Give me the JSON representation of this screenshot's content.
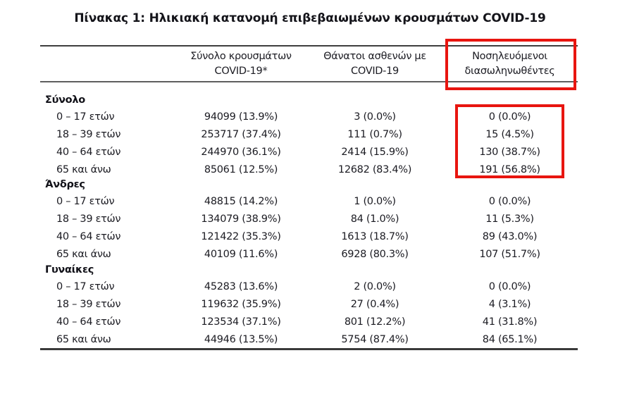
{
  "title": "Πίνακας 1: Ηλικιακή κατανομή επιβεβαιωμένων κρουσμάτων COVID-19",
  "highlight_color": "#e8150f",
  "text_color": "#1b1b22",
  "table": {
    "columns": [
      {
        "line1": "Σύνολο κρουσμάτων",
        "line2": "COVID-19*"
      },
      {
        "line1": "Θάνατοι ασθενών με",
        "line2": "COVID-19"
      },
      {
        "line1": "Νοσηλευόμενοι",
        "line2": "διασωληνωθέντες"
      }
    ],
    "sections": [
      {
        "label": "Σύνολο",
        "rows": [
          {
            "age": "0 – 17 ετών",
            "cases": "94099 (13.9%)",
            "deaths": "3 (0.0%)",
            "intubated": "0 (0.0%)"
          },
          {
            "age": "18 – 39 ετών",
            "cases": "253717 (37.4%)",
            "deaths": "111 (0.7%)",
            "intubated": "15 (4.5%)"
          },
          {
            "age": "40 – 64 ετών",
            "cases": "244970 (36.1%)",
            "deaths": "2414 (15.9%)",
            "intubated": "130 (38.7%)"
          },
          {
            "age": "65 και άνω",
            "cases": "85061 (12.5%)",
            "deaths": "12682 (83.4%)",
            "intubated": "191 (56.8%)"
          }
        ]
      },
      {
        "label": "Άνδρες",
        "rows": [
          {
            "age": "0 – 17 ετών",
            "cases": "48815 (14.2%)",
            "deaths": "1 (0.0%)",
            "intubated": "0 (0.0%)"
          },
          {
            "age": "18 – 39 ετών",
            "cases": "134079 (38.9%)",
            "deaths": "84 (1.0%)",
            "intubated": "11 (5.3%)"
          },
          {
            "age": "40 – 64 ετών",
            "cases": "121422 (35.3%)",
            "deaths": "1613 (18.7%)",
            "intubated": "89 (43.0%)"
          },
          {
            "age": "65 και άνω",
            "cases": "40109 (11.6%)",
            "deaths": "6928 (80.3%)",
            "intubated": "107 (51.7%)"
          }
        ]
      },
      {
        "label": "Γυναίκες",
        "rows": [
          {
            "age": "0 – 17 ετών",
            "cases": "45283 (13.6%)",
            "deaths": "2 (0.0%)",
            "intubated": "0 (0.0%)"
          },
          {
            "age": "18 – 39 ετών",
            "cases": "119632 (35.9%)",
            "deaths": "27 (0.4%)",
            "intubated": "4 (3.1%)"
          },
          {
            "age": "40 – 64 ετών",
            "cases": "123534 (37.1%)",
            "deaths": "801 (12.2%)",
            "intubated": "41 (31.8%)"
          },
          {
            "age": "65 και άνω",
            "cases": "44946 (13.5%)",
            "deaths": "5754 (87.4%)",
            "intubated": "84 (65.1%)"
          }
        ]
      }
    ]
  }
}
